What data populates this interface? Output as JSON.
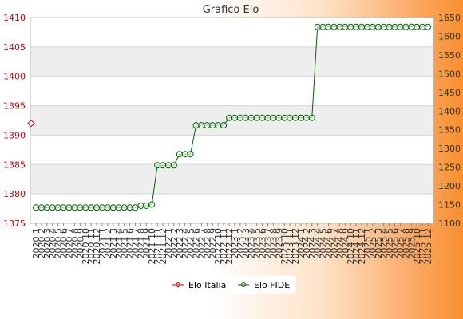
{
  "chart_data": {
    "type": "line",
    "title": "Grafico Elo",
    "x": [
      "2020 1",
      "2020 2",
      "2020 3",
      "2020 4",
      "2020 5",
      "2020 6",
      "2020 7",
      "2020 8",
      "2020 9",
      "2020 10",
      "2020 11",
      "2020 12",
      "2021 1",
      "2021 2",
      "2021 3",
      "2021 4",
      "2021 5",
      "2021 6",
      "2021 7",
      "2021 8",
      "2021 9",
      "2021 10",
      "2021 11",
      "2021 12",
      "2022 1",
      "2022 2",
      "2022 3",
      "2022 4",
      "2022 5",
      "2022 6",
      "2022 7",
      "2022 8",
      "2022 9",
      "2022 10",
      "2022 11",
      "2022 12",
      "2023 1",
      "2023 2",
      "2023 3",
      "2023 4",
      "2023 5",
      "2023 6",
      "2023 7",
      "2023 8",
      "2023 9",
      "2023 10",
      "2023 11",
      "2023 12",
      "2024 1",
      "2024 2",
      "2024 3",
      "2024 4",
      "2024 5",
      "2024 6",
      "2024 7",
      "2024 8",
      "2024 9",
      "2024 10",
      "2024 11",
      "2024 12",
      "2025 1",
      "2025 2",
      "2025 3",
      "2025 4",
      "2025 5",
      "2025 6",
      "2025 7",
      "2025 8",
      "2025 9",
      "2025 10",
      "2025 11",
      "2025 12"
    ],
    "y_left": {
      "min": 1375,
      "max": 1410,
      "ticks": [
        1375,
        1380,
        1385,
        1390,
        1395,
        1400,
        1405,
        1410
      ],
      "color": "#cc0000"
    },
    "y_right": {
      "min": 1100,
      "max": 1650,
      "ticks": [
        1100,
        1150,
        1200,
        1250,
        1300,
        1350,
        1400,
        1450,
        1500,
        1550,
        1600,
        1650
      ],
      "color": "#336600"
    },
    "grid": true,
    "legend_position": "bottom",
    "series": [
      {
        "name": "Elo Italia",
        "axis": "left",
        "color": "#cc0000",
        "marker": "diamond",
        "points": [
          {
            "x": "2020 1",
            "y": 1392
          }
        ]
      },
      {
        "name": "Elo FIDE",
        "axis": "right",
        "color": "#006600",
        "marker": "circle",
        "values": [
          1142,
          1142,
          1142,
          1142,
          1142,
          1142,
          1142,
          1142,
          1142,
          1142,
          1142,
          1142,
          1142,
          1142,
          1142,
          1142,
          1142,
          1142,
          1142,
          1147,
          1147,
          1150,
          1255,
          1255,
          1255,
          1255,
          1285,
          1285,
          1285,
          1362,
          1362,
          1362,
          1362,
          1362,
          1362,
          1382,
          1382,
          1382,
          1382,
          1382,
          1382,
          1382,
          1382,
          1382,
          1382,
          1382,
          1382,
          1382,
          1382,
          1382,
          1382,
          1625,
          1625,
          1625,
          1625,
          1625,
          1625,
          1625,
          1625,
          1625,
          1625,
          1625,
          1625,
          1625,
          1625,
          1625,
          1625,
          1625,
          1625,
          1625,
          1625,
          1625
        ]
      }
    ]
  }
}
